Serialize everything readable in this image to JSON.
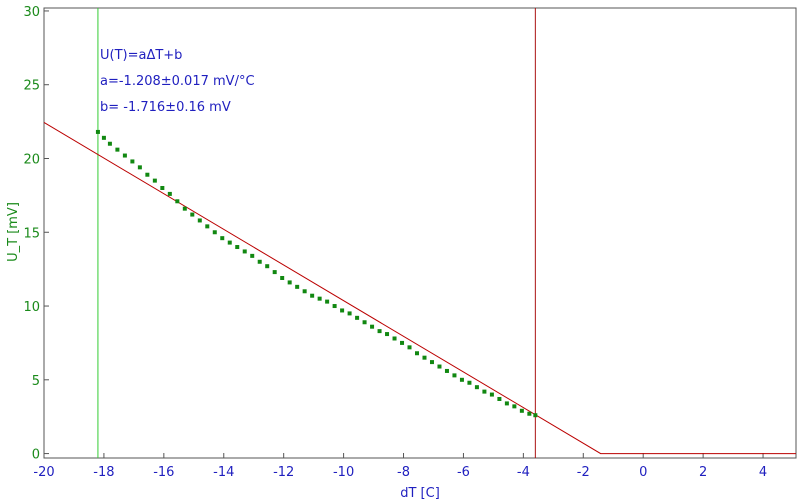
{
  "chart_data": {
    "type": "scatter",
    "xlabel": "dT [C]",
    "ylabel": "U_T [mV]",
    "xlim": [
      -20,
      5.1
    ],
    "ylim": [
      -0.3,
      30.2
    ],
    "x_ticks": [
      "-20",
      "-18",
      "-16",
      "-14",
      "-12",
      "-10",
      "-8",
      "-6",
      "-4",
      "-2",
      "0",
      "2",
      "4"
    ],
    "y_ticks": [
      "0",
      "5",
      "10",
      "15",
      "20",
      "25",
      "30"
    ],
    "grid": false,
    "annotations": [
      "U(T)=aΔT+b",
      "a=-1.208±0.017 mV/°C",
      "b= -1.716±0.16 mV"
    ],
    "fit_line": {
      "slope": -1.208,
      "intercept": -1.716,
      "x_end": -1.42,
      "flat_y": 0,
      "flat_x_end": 5.1
    },
    "markers": {
      "green_x": -18.2,
      "red_x": -3.6
    },
    "series": [
      {
        "x": [
          -18.2,
          -18.0,
          -17.8,
          -17.55,
          -17.3,
          -17.05,
          -16.8,
          -16.55,
          -16.3,
          -16.05,
          -15.8,
          -15.55,
          -15.3,
          -15.05,
          -14.8,
          -14.55,
          -14.3,
          -14.05,
          -13.8,
          -13.55,
          -13.3,
          -13.05,
          -12.8,
          -12.55,
          -12.3,
          -12.05,
          -11.8,
          -11.55,
          -11.3,
          -11.05,
          -10.8,
          -10.55,
          -10.3,
          -10.05,
          -9.8,
          -9.55,
          -9.3,
          -9.05,
          -8.8,
          -8.55,
          -8.3,
          -8.05,
          -7.8,
          -7.55,
          -7.3,
          -7.05,
          -6.8,
          -6.55,
          -6.3,
          -6.05,
          -5.8,
          -5.55,
          -5.3,
          -5.05,
          -4.8,
          -4.55,
          -4.3,
          -4.05,
          -3.8,
          -3.6
        ],
        "y": [
          21.8,
          21.4,
          21.0,
          20.6,
          20.2,
          19.8,
          19.4,
          18.9,
          18.5,
          18.0,
          17.6,
          17.1,
          16.6,
          16.2,
          15.8,
          15.4,
          15.0,
          14.6,
          14.3,
          14.0,
          13.7,
          13.4,
          13.0,
          12.7,
          12.3,
          11.9,
          11.6,
          11.3,
          11.0,
          10.7,
          10.5,
          10.3,
          10.0,
          9.7,
          9.5,
          9.2,
          8.9,
          8.6,
          8.3,
          8.1,
          7.8,
          7.5,
          7.2,
          6.8,
          6.5,
          6.2,
          5.9,
          5.6,
          5.3,
          5.0,
          4.8,
          4.5,
          4.2,
          4.0,
          3.7,
          3.4,
          3.2,
          2.9,
          2.7,
          2.6
        ]
      }
    ]
  }
}
